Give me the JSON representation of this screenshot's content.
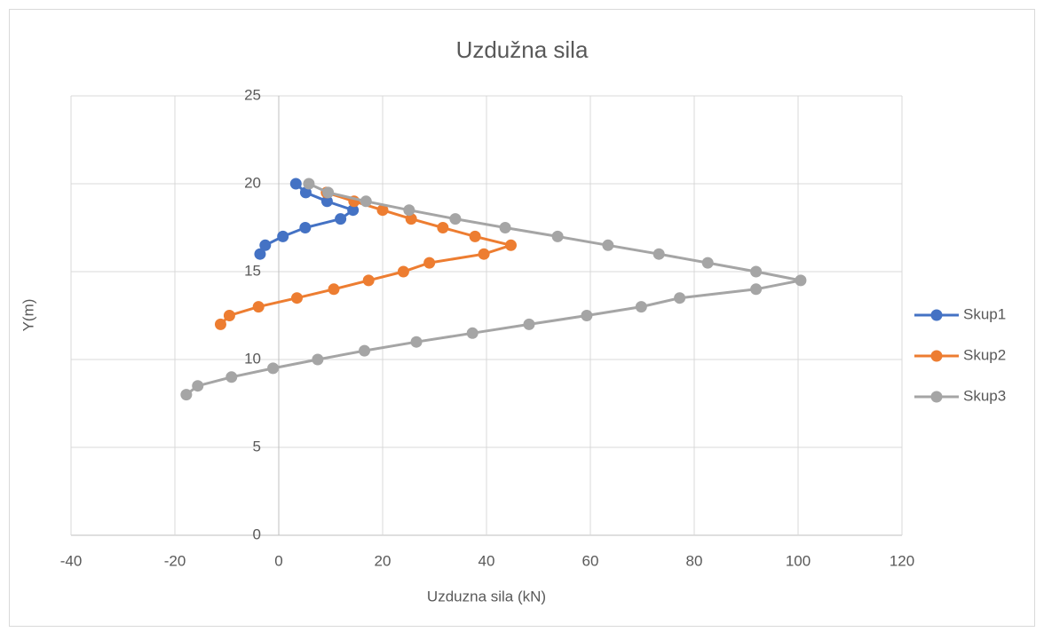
{
  "chart_data": {
    "type": "scatter",
    "title": "Uzdužna sila",
    "xlabel": "Uzduzna sila (kN)",
    "ylabel": "Y(m)",
    "xlim": [
      -40,
      120
    ],
    "xticks": [
      -40,
      -20,
      0,
      20,
      40,
      60,
      80,
      100,
      120
    ],
    "ylim": [
      0,
      25
    ],
    "yticks": [
      0,
      5,
      10,
      15,
      20,
      25
    ],
    "grid": true,
    "legend": "right",
    "series": [
      {
        "name": "Skup1",
        "color": "#4472c4",
        "x": [
          3.3,
          5.2,
          9.3,
          14.3,
          11.9,
          5.1,
          0.8,
          -2.6,
          -3.6
        ],
        "values": [
          20,
          19.5,
          19,
          18.5,
          18,
          17.5,
          17,
          16.5,
          16
        ]
      },
      {
        "name": "Skup2",
        "color": "#ed7d31",
        "x": [
          9.2,
          14.5,
          20,
          25.5,
          31.6,
          37.8,
          44.7,
          39.5,
          29,
          24,
          17.3,
          10.6,
          3.5,
          -3.9,
          -9.5,
          -11.2
        ],
        "values": [
          19.5,
          19,
          18.5,
          18,
          17.5,
          17,
          16.5,
          16,
          15.5,
          15,
          14.5,
          14,
          13.5,
          13,
          12.5,
          12
        ]
      },
      {
        "name": "Skup3",
        "color": "#a5a5a5",
        "x": [
          5.8,
          9.5,
          16.8,
          25.1,
          34,
          43.6,
          53.7,
          63.4,
          73.2,
          82.6,
          91.9,
          100.5,
          91.9,
          77.2,
          69.8,
          59.3,
          48.2,
          37.3,
          26.5,
          16.5,
          7.5,
          -1.1,
          -9.1,
          -15.6,
          -17.8
        ],
        "values": [
          20,
          19.5,
          19,
          18.5,
          18,
          17.5,
          17,
          16.5,
          16,
          15.5,
          15,
          14.5,
          14,
          13.5,
          13,
          12.5,
          12,
          11.5,
          11,
          10.5,
          10,
          9.5,
          9,
          8.5,
          8
        ]
      }
    ]
  }
}
